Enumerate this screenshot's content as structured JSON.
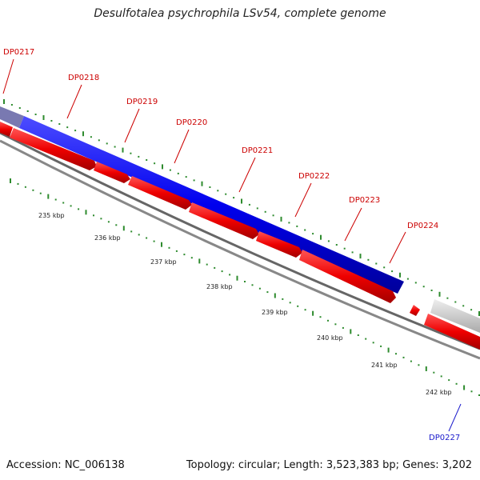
{
  "title": "Desulfotalea psychrophila LSv54, complete genome",
  "footer": {
    "accession": "Accession: NC_006138",
    "summary": "Topology: circular; Length: 3,523,383 bp; Genes: 3,202"
  },
  "colors": {
    "forward_strand": "#0000ff",
    "reverse_strand": "#ff0000",
    "forward_label": "#cc0000",
    "blue_label": "#1a1acc",
    "tick": "#2e8b2e",
    "backbone": "#777777",
    "grey_feature": "#cccccc"
  },
  "genes": [
    "DP0217",
    "DP0218",
    "DP0219",
    "DP0220",
    "DP0221",
    "DP0222",
    "DP0223",
    "DP0224"
  ],
  "lower_gene": "DP0227",
  "scale_labels": [
    "235 kbp",
    "236 kbp",
    "237 kbp",
    "238 kbp",
    "239 kbp",
    "240 kbp",
    "241 kbp",
    "242 kbp"
  ]
}
